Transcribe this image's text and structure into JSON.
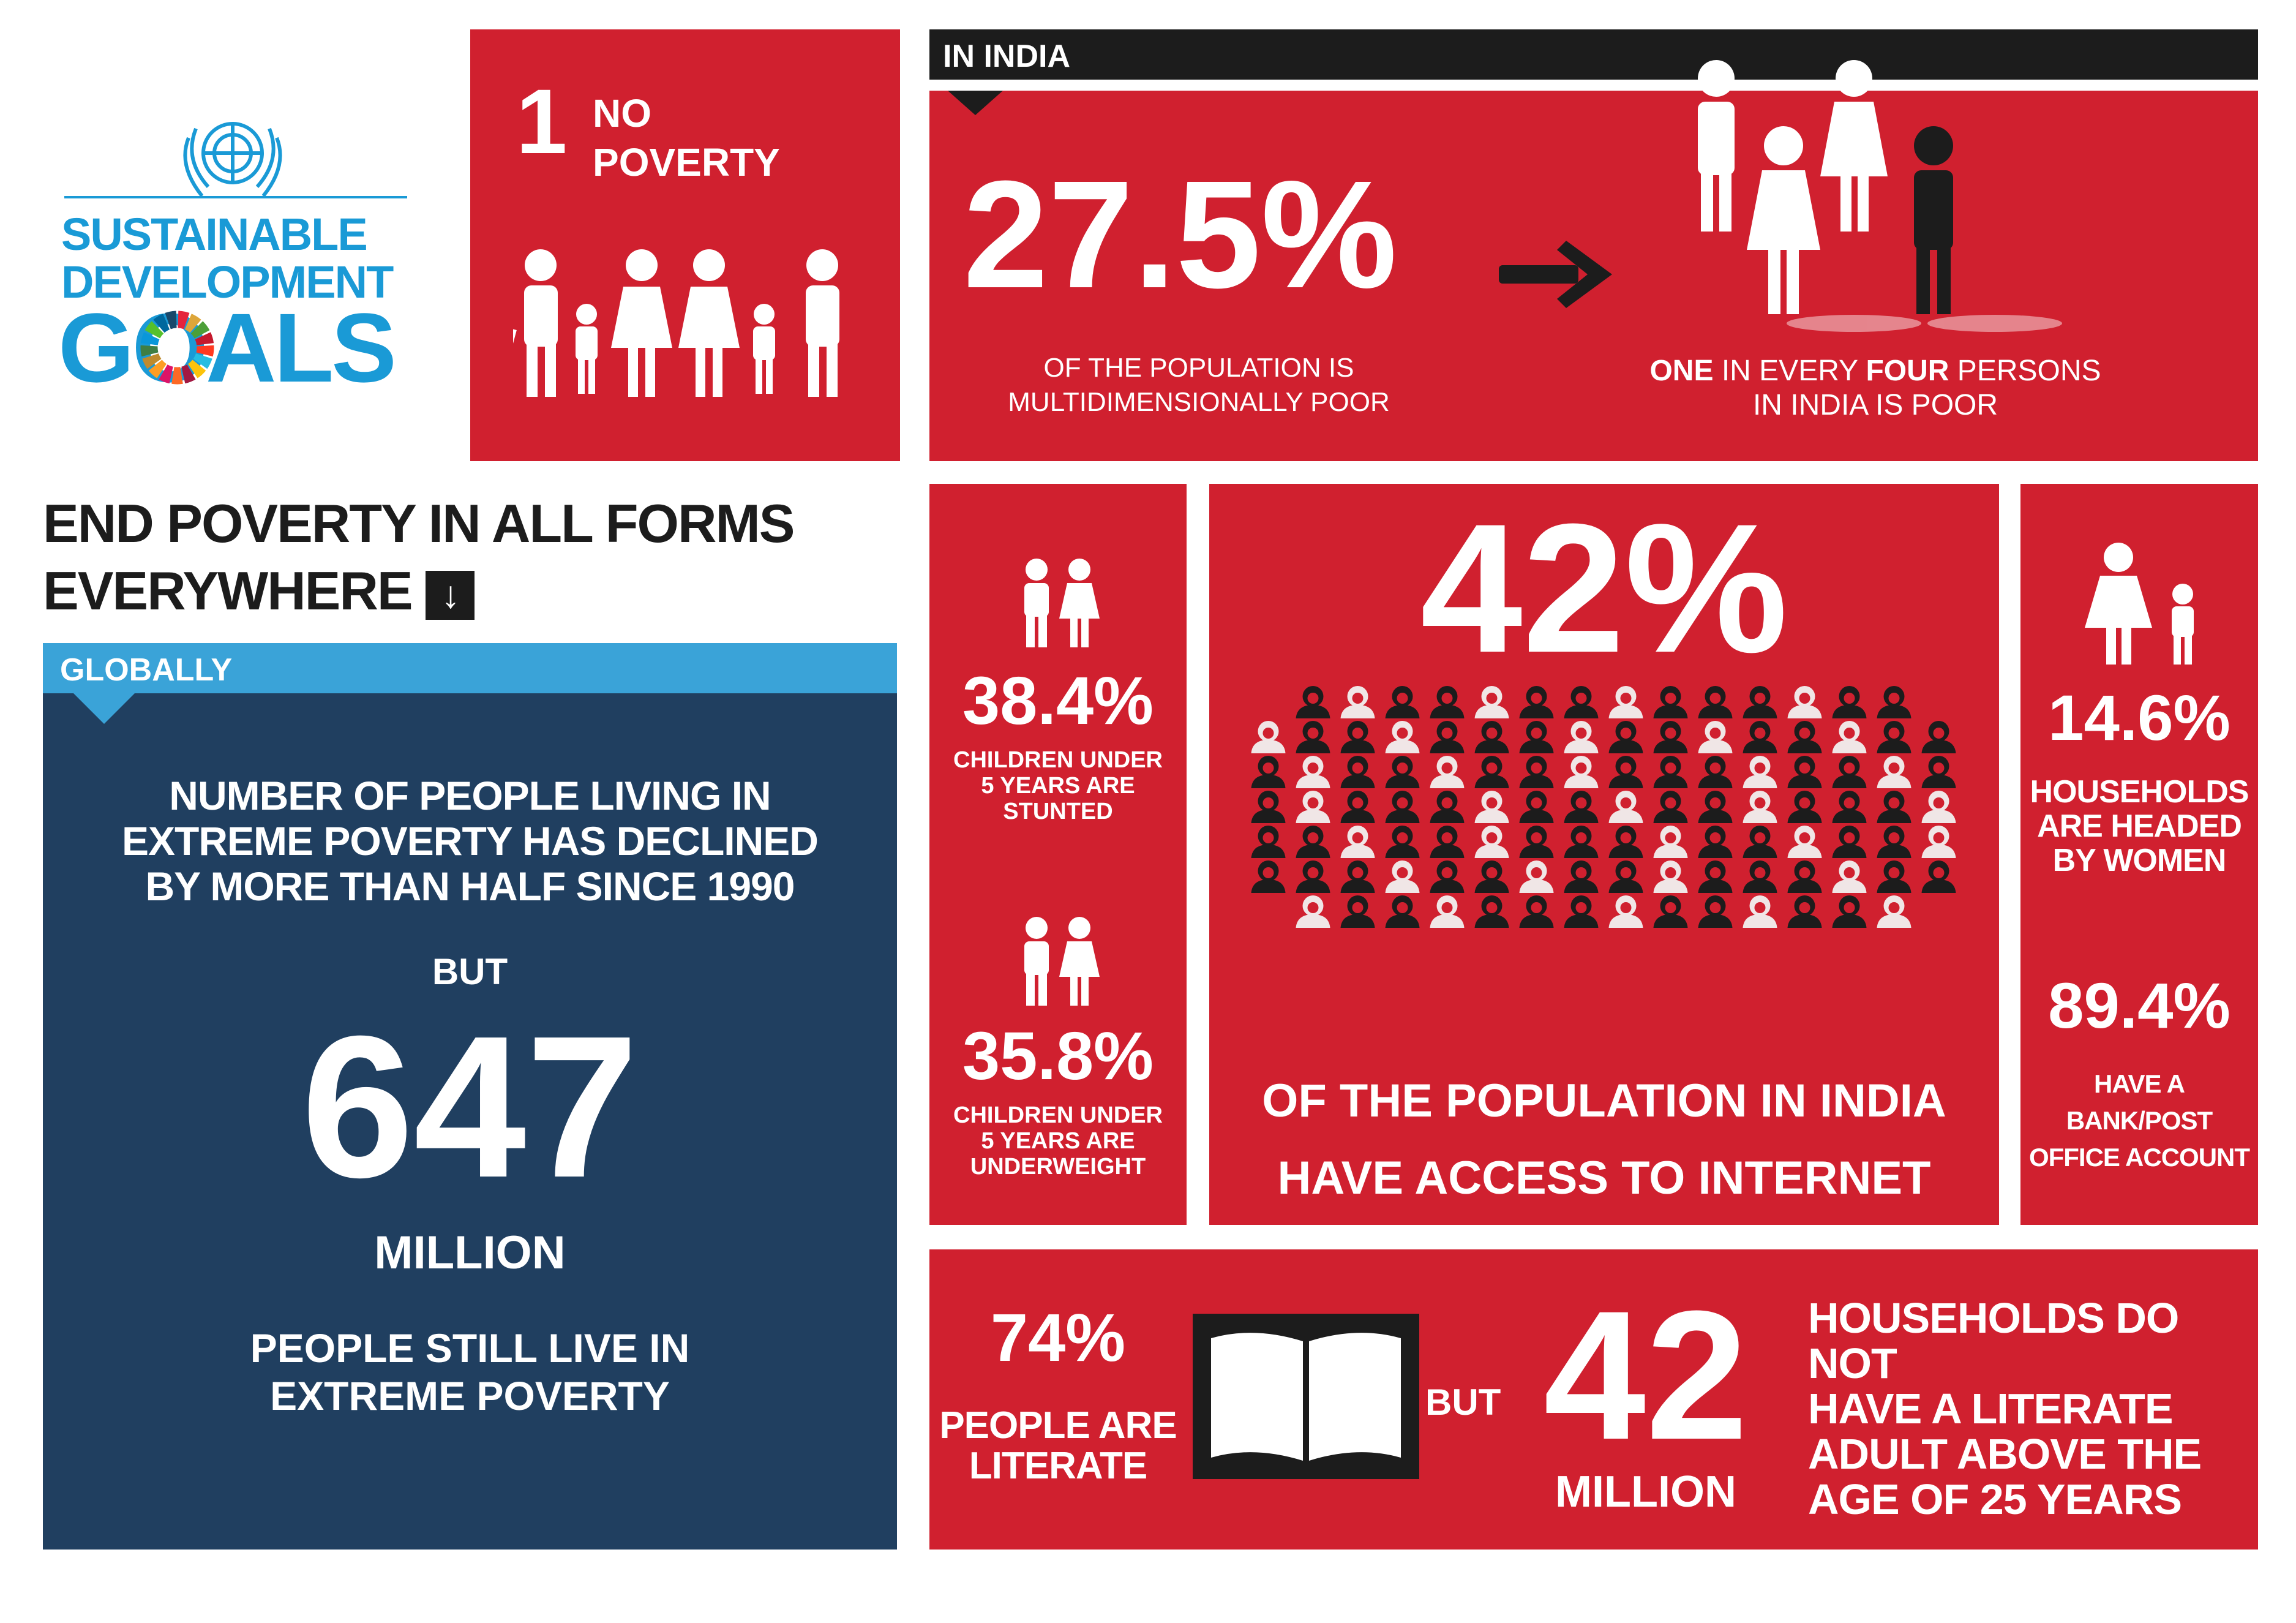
{
  "sdg_logo": {
    "line1": "SUSTAINABLE",
    "line2": "DEVELOPMENT",
    "line3": "GOALS",
    "colors": {
      "blue": "#1a9ad6",
      "wheel": [
        "#e5243b",
        "#dda63a",
        "#4c9f38",
        "#c5192d",
        "#ff3a21",
        "#26bde2",
        "#fcc30b",
        "#a21942",
        "#fd6925",
        "#dd1367",
        "#fd9d24",
        "#bf8b2e",
        "#3f7e44",
        "#0a97d9",
        "#56c02b",
        "#00689d",
        "#19486a"
      ]
    }
  },
  "goal_tile": {
    "number": "1",
    "title_line1": "NO",
    "title_line2": "POVERTY",
    "icon": "family-icon"
  },
  "headline": {
    "line1": "END POVERTY IN ALL FORMS",
    "line2": "EVERYWHERE",
    "icon": "arrow-down-icon"
  },
  "globally": {
    "tab_label": "GLOBALLY",
    "statement_line1": "NUMBER OF PEOPLE LIVING IN",
    "statement_line2": "EXTREME POVERTY HAS DECLINED",
    "statement_line3": "BY MORE THAN HALF SINCE 1990",
    "but": "BUT",
    "big_number": "647",
    "unit": "MILLION",
    "caption_line1": "PEOPLE STILL LIVE IN",
    "caption_line2": "EXTREME POVERTY"
  },
  "india": {
    "tab_label": "IN INDIA",
    "poverty": {
      "value": "27.5%",
      "caption_line1": "OF THE POPULATION IS",
      "caption_line2": "MULTIDIMENSIONALLY POOR",
      "arrow_icon": "arrow-right-icon",
      "persons_icon": "four-persons-icon",
      "one": "ONE",
      "in_every": " IN EVERY ",
      "four": "FOUR",
      "persons": " PERSONS",
      "line2": "IN INDIA IS POOR"
    },
    "children": {
      "stunted_value": "38.4%",
      "stunted_line1": "CHILDREN UNDER",
      "stunted_line2": "5 YEARS ARE",
      "stunted_line3": "STUNTED",
      "underweight_value": "35.8%",
      "underweight_line1": "CHILDREN UNDER",
      "underweight_line2": "5 YEARS ARE",
      "underweight_line3": "UNDERWEIGHT",
      "icon": "children-icon"
    },
    "internet": {
      "value": "42%",
      "caption_line1": "OF THE POPULATION IN INDIA",
      "caption_line2": "HAVE ACCESS TO INTERNET",
      "grid_icon": "crowd-icon"
    },
    "households": {
      "women_value": "14.6%",
      "women_line1": "HOUSEHOLDS",
      "women_line2": "ARE HEADED",
      "women_line3": "BY WOMEN",
      "bank_value": "89.4%",
      "bank_line1": "HAVE A",
      "bank_line2": "BANK/POST",
      "bank_line3": "OFFICE ACCOUNT",
      "icon": "mother-child-icon"
    },
    "literacy": {
      "value": "74%",
      "caption_line1": "PEOPLE ARE",
      "caption_line2": "LITERATE",
      "book_icon": "book-icon",
      "but": "BUT",
      "big_number": "42",
      "unit": "MILLION",
      "households_line1": "HOUSEHOLDS DO NOT",
      "households_line2": "HAVE A LITERATE",
      "households_line3": "ADULT ABOVE THE",
      "households_line4": "AGE OF 25 YEARS"
    }
  }
}
